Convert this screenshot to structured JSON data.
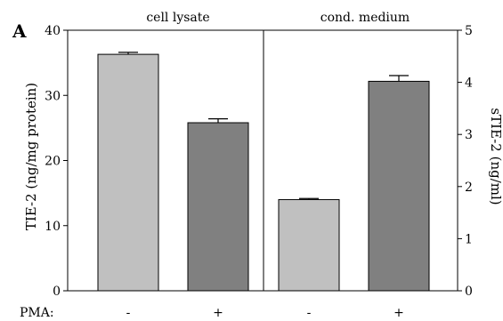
{
  "panel_letter": "A",
  "chart_data": {
    "type": "bar",
    "groups": [
      {
        "label": "cell lysate",
        "axis": "left",
        "bars": [
          {
            "pma": "-",
            "value": 36.3,
            "error": 0.3,
            "color": "#c0c0c0"
          },
          {
            "pma": "+",
            "value": 25.8,
            "error": 0.6,
            "color": "#808080"
          }
        ]
      },
      {
        "label": "cond. medium",
        "axis": "right",
        "bars": [
          {
            "pma": "-",
            "value": 1.75,
            "error": 0.02,
            "color": "#c0c0c0"
          },
          {
            "pma": "+",
            "value": 4.02,
            "error": 0.11,
            "color": "#808080"
          }
        ]
      }
    ],
    "left_axis": {
      "label": "TIE-2 (ng/mg protein)",
      "min": 0,
      "max": 40,
      "ticks": [
        0,
        10,
        20,
        30,
        40
      ]
    },
    "right_axis": {
      "label": "sTIE-2 (ng/ml)",
      "min": 0,
      "max": 5,
      "ticks": [
        0,
        1,
        2,
        3,
        4,
        5
      ]
    },
    "x_row_label": "PMA:"
  }
}
